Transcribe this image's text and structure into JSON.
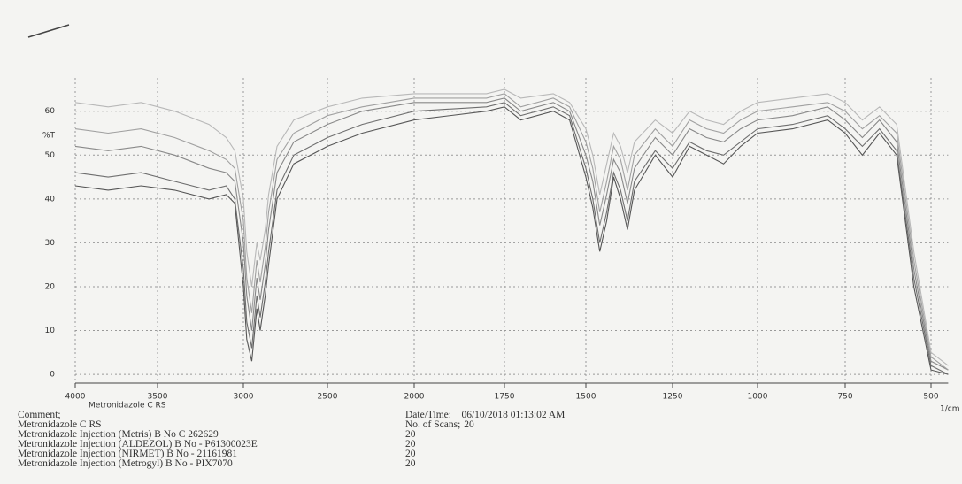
{
  "chart_data": {
    "type": "line",
    "y_axis_label": "%T",
    "x_axis_label": "1/cm",
    "plot_label": "Metronidazole C RS",
    "x": [
      4000,
      3800,
      3600,
      3400,
      3200,
      3100,
      3050,
      3000,
      2980,
      2950,
      2920,
      2900,
      2870,
      2850,
      2800,
      2700,
      2500,
      2300,
      2000,
      1800,
      1750,
      1700,
      1600,
      1550,
      1500,
      1480,
      1460,
      1440,
      1420,
      1400,
      1380,
      1360,
      1300,
      1250,
      1200,
      1150,
      1100,
      1050,
      1000,
      900,
      800,
      750,
      700,
      650,
      600,
      550,
      500,
      450
    ],
    "series": [
      {
        "name": "Metronidazole C RS",
        "color": "#555555",
        "values": [
          43,
          42,
          43,
          42,
          40,
          41,
          39,
          20,
          8,
          3,
          15,
          10,
          18,
          25,
          40,
          48,
          52,
          55,
          58,
          60,
          61,
          58,
          60,
          58,
          45,
          38,
          28,
          35,
          45,
          40,
          33,
          42,
          50,
          45,
          52,
          50,
          48,
          52,
          55,
          56,
          58,
          55,
          50,
          55,
          50,
          20,
          1,
          0
        ]
      },
      {
        "name": "Metronidazole Injection (Metris) B No C 262629",
        "color": "#6e6e6e",
        "values": [
          46,
          45,
          46,
          44,
          42,
          43,
          40,
          24,
          12,
          6,
          18,
          13,
          21,
          28,
          42,
          50,
          54,
          57,
          60,
          61,
          62,
          59,
          61,
          59,
          47,
          40,
          30,
          37,
          46,
          42,
          35,
          44,
          51,
          47,
          53,
          51,
          50,
          53,
          56,
          57,
          59,
          56,
          52,
          56,
          51,
          22,
          2,
          0
        ]
      },
      {
        "name": "Metronidazole Injection (ALDEZOL) B No - P61300023E",
        "color": "#888888",
        "values": [
          52,
          51,
          52,
          50,
          47,
          46,
          44,
          30,
          18,
          10,
          22,
          17,
          25,
          33,
          46,
          53,
          57,
          60,
          62,
          62,
          63,
          60,
          62,
          60,
          50,
          44,
          34,
          41,
          49,
          46,
          39,
          47,
          54,
          50,
          56,
          54,
          53,
          56,
          58,
          59,
          61,
          58,
          54,
          58,
          53,
          24,
          3,
          1
        ]
      },
      {
        "name": "Metronidazole Injection (NIRMET) B No - 21161981",
        "color": "#a0a0a0",
        "values": [
          56,
          55,
          56,
          54,
          51,
          49,
          47,
          35,
          22,
          14,
          26,
          21,
          29,
          37,
          49,
          55,
          59,
          61,
          63,
          63,
          64,
          61,
          63,
          61,
          53,
          47,
          37,
          44,
          52,
          49,
          42,
          50,
          56,
          52,
          58,
          56,
          55,
          58,
          60,
          61,
          62,
          60,
          56,
          59,
          55,
          26,
          4,
          1
        ]
      },
      {
        "name": "Metronidazole Injection (Metrogyl) B No - PIX7070",
        "color": "#b8b8b8",
        "values": [
          62,
          61,
          62,
          60,
          57,
          54,
          51,
          40,
          28,
          20,
          30,
          26,
          33,
          41,
          52,
          58,
          61,
          63,
          64,
          64,
          65,
          63,
          64,
          62,
          56,
          50,
          41,
          48,
          55,
          52,
          46,
          53,
          58,
          55,
          60,
          58,
          57,
          60,
          62,
          63,
          64,
          62,
          58,
          61,
          57,
          28,
          5,
          2
        ]
      }
    ],
    "xlim": [
      4000,
      450
    ],
    "ylim": [
      -2,
      66
    ],
    "xticks": [
      4000,
      3500,
      3000,
      2500,
      2000,
      1750,
      1500,
      1250,
      1000,
      750,
      500
    ],
    "yticks": [
      0,
      10,
      20,
      30,
      40,
      50,
      60
    ],
    "grid": true,
    "comment_label": "Comment;",
    "date_label": "Date/Time:",
    "date_value": "06/10/2018 01:13:02 AM",
    "scans_label": "No. of Scans;",
    "scans": [
      20,
      20,
      20,
      20,
      20
    ]
  }
}
